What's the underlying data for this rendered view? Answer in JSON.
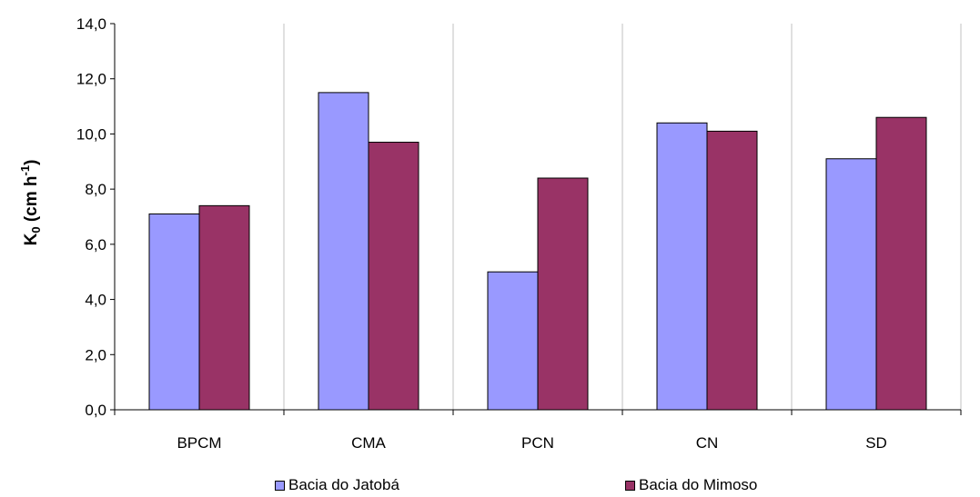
{
  "chart_data": {
    "type": "bar",
    "categories": [
      "BPCM",
      "CMA",
      "PCN",
      "CN",
      "SD"
    ],
    "series": [
      {
        "name": "Bacia do Jatobá",
        "values": [
          7.1,
          11.5,
          5.0,
          10.4,
          9.1
        ],
        "color": "#9999ff"
      },
      {
        "name": "Bacia do Mimoso",
        "values": [
          7.4,
          9.7,
          8.4,
          10.1,
          10.6
        ],
        "color": "#993366"
      }
    ],
    "ylim": [
      0,
      14
    ],
    "ytick_step": 2,
    "ytick_labels": [
      "0,0",
      "2,0",
      "4,0",
      "6,0",
      "8,0",
      "10,0",
      "12,0",
      "14,0"
    ],
    "ylabel": {
      "main": "K",
      "sub": "0",
      "unit": " (cm h",
      "sup": "-1",
      "close": ")"
    },
    "xlabel": "",
    "title": "",
    "grid": "vertical",
    "legend": "bottom"
  }
}
